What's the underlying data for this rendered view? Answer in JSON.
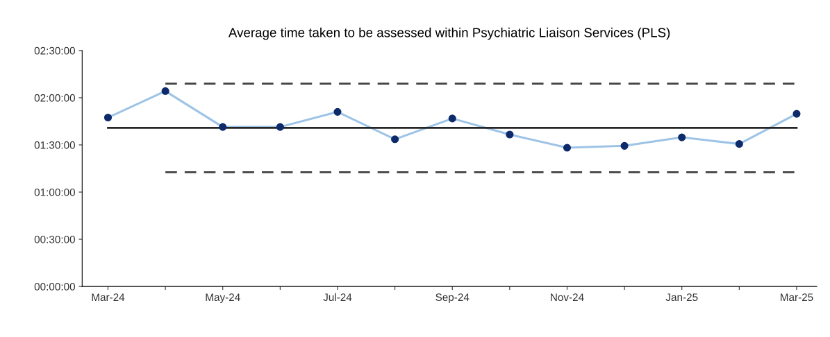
{
  "chart_data": {
    "type": "line",
    "title": "Average time taken to be assessed within Psychiatric Liaison Services (PLS)",
    "categories": [
      "Mar-24",
      null,
      "May-24",
      null,
      "Jul-24",
      null,
      "Sep-24",
      null,
      "Nov-24",
      null,
      "Jan-25",
      null,
      "Mar-25"
    ],
    "series": [
      {
        "color": "#9dc3e6",
        "colors": [
          "#0d2a6b",
          "#0d2a6b",
          "#0d2a6b",
          "#0d2a6b",
          "#0d2a6b",
          "#0d2a6b",
          "#0d2a6b",
          "#0d2a6b",
          "#0d2a6b",
          "#0d2a6b",
          "#0d2a6b",
          "#0d2a6b",
          "#0d2a6b"
        ],
        "marker": "circle",
        "line_style": "solid",
        "values": [
          1.79,
          2.07,
          1.69,
          1.69,
          1.85,
          1.56,
          1.78,
          1.61,
          1.47,
          1.49,
          1.58,
          1.51,
          1.83
        ]
      },
      {
        "color": "#262626",
        "marker": "none",
        "line_style": "solid",
        "values": [
          1.68,
          1.68,
          1.68,
          1.68,
          1.68,
          1.68,
          1.68,
          1.68,
          1.68,
          1.68,
          1.68,
          1.68,
          1.68
        ]
      },
      {
        "color": "#404040",
        "marker": "none",
        "line_style": "dashed",
        "values": [
          null,
          2.15,
          2.15,
          2.15,
          2.15,
          2.15,
          2.15,
          2.15,
          2.15,
          2.15,
          2.15,
          2.15,
          2.15
        ]
      },
      {
        "color": "#404040",
        "marker": "none",
        "line_style": "dashed",
        "values": [
          null,
          1.21,
          1.21,
          1.21,
          1.21,
          1.21,
          1.21,
          1.21,
          1.21,
          1.21,
          1.21,
          1.21,
          1.21
        ]
      }
    ],
    "ylim": [
      0,
      2.5
    ],
    "yticks": [
      {
        "value": 0,
        "label": "00:00:00"
      },
      {
        "value": 0.5,
        "label": "00:30:00"
      },
      {
        "value": 1,
        "label": "01:00:00"
      },
      {
        "value": 1.5,
        "label": "01:30:00"
      },
      {
        "value": 2,
        "label": "02:00:00"
      },
      {
        "value": 2.5,
        "label": "02:30:00"
      }
    ],
    "grid": false,
    "legend": false
  }
}
